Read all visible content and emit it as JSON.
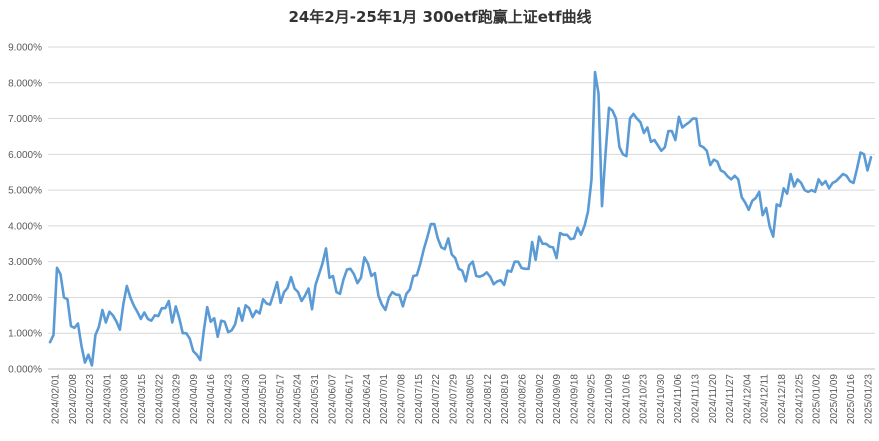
{
  "chart_data": {
    "type": "line",
    "title": "24年2月-25年1月 300etf跑赢上证etf曲线",
    "xlabel": "",
    "ylabel": "",
    "ylim": [
      0,
      0.09
    ],
    "yticks": [
      "0.000%",
      "1.000%",
      "2.000%",
      "3.000%",
      "4.000%",
      "5.000%",
      "6.000%",
      "7.000%",
      "8.000%",
      "9.000%"
    ],
    "xticks": [
      "2024/02/01",
      "2024/02/08",
      "2024/02/23",
      "2024/03/01",
      "2024/03/08",
      "2024/03/15",
      "2024/03/22",
      "2024/03/29",
      "2024/04/09",
      "2024/04/16",
      "2024/04/23",
      "2024/04/30",
      "2024/05/10",
      "2024/05/17",
      "2024/05/24",
      "2024/05/31",
      "2024/06/07",
      "2024/06/17",
      "2024/06/24",
      "2024/07/01",
      "2024/07/08",
      "2024/07/15",
      "2024/07/22",
      "2024/07/29",
      "2024/08/05",
      "2024/08/12",
      "2024/08/19",
      "2024/08/26",
      "2024/09/02",
      "2024/09/09",
      "2024/09/18",
      "2024/09/25",
      "2024/10/09",
      "2024/10/16",
      "2024/10/23",
      "2024/10/30",
      "2024/11/06",
      "2024/11/13",
      "2024/11/20",
      "2024/11/27",
      "2024/12/04",
      "2024/12/11",
      "2024/12/18",
      "2024/12/25",
      "2025/01/02",
      "2025/01/09",
      "2025/01/16",
      "2025/01/23"
    ],
    "grid": true,
    "legend": "none",
    "line_color": "#5b9bd5",
    "series": [
      {
        "values": [
          0.0075,
          0.0095,
          0.0283,
          0.0265,
          0.02,
          0.0195,
          0.012,
          0.0115,
          0.0127,
          0.0065,
          0.0018,
          0.004,
          0.001,
          0.0095,
          0.0118,
          0.0165,
          0.013,
          0.016,
          0.015,
          0.0133,
          0.011,
          0.0182,
          0.0232,
          0.02,
          0.0177,
          0.016,
          0.014,
          0.0158,
          0.014,
          0.0135,
          0.015,
          0.0148,
          0.017,
          0.017,
          0.019,
          0.013,
          0.0175,
          0.0142,
          0.01,
          0.01,
          0.0085,
          0.005,
          0.004,
          0.0025,
          0.0105,
          0.0173,
          0.0132,
          0.0142,
          0.009,
          0.0135,
          0.0132,
          0.0103,
          0.0108,
          0.0125,
          0.017,
          0.0135,
          0.0178,
          0.017,
          0.0145,
          0.0163,
          0.0155,
          0.0195,
          0.0183,
          0.018,
          0.021,
          0.0243,
          0.0185,
          0.0215,
          0.0227,
          0.0257,
          0.0225,
          0.0215,
          0.019,
          0.0205,
          0.0225,
          0.0167,
          0.0235,
          0.0265,
          0.0295,
          0.0337,
          0.0255,
          0.026,
          0.0215,
          0.021,
          0.025,
          0.0278,
          0.028,
          0.0265,
          0.024,
          0.0255,
          0.0312,
          0.0295,
          0.026,
          0.0268,
          0.0205,
          0.018,
          0.0165,
          0.02,
          0.0215,
          0.0208,
          0.0207,
          0.0175,
          0.021,
          0.0222,
          0.026,
          0.0262,
          0.0295,
          0.0335,
          0.0368,
          0.0405,
          0.0405,
          0.0365,
          0.034,
          0.0335,
          0.0365,
          0.032,
          0.031,
          0.028,
          0.0275,
          0.0245,
          0.029,
          0.03,
          0.026,
          0.0258,
          0.0262,
          0.027,
          0.0258,
          0.0237,
          0.0245,
          0.0248,
          0.0235,
          0.0275,
          0.0272,
          0.03,
          0.03,
          0.0282,
          0.028,
          0.028,
          0.0355,
          0.0305,
          0.037,
          0.035,
          0.035,
          0.0342,
          0.034,
          0.031,
          0.038,
          0.0375,
          0.0375,
          0.0363,
          0.0365,
          0.0395,
          0.0375,
          0.04,
          0.044,
          0.053,
          0.083,
          0.077,
          0.0455,
          0.06,
          0.073,
          0.0722,
          0.07,
          0.062,
          0.06,
          0.0595,
          0.07,
          0.0713,
          0.07,
          0.069,
          0.066,
          0.0675,
          0.0635,
          0.064,
          0.0625,
          0.061,
          0.062,
          0.0665,
          0.0665,
          0.064,
          0.0705,
          0.0675,
          0.0683,
          0.069,
          0.07,
          0.07,
          0.0625,
          0.062,
          0.061,
          0.057,
          0.0585,
          0.058,
          0.0555,
          0.055,
          0.0538,
          0.053,
          0.054,
          0.053,
          0.048,
          0.0465,
          0.0445,
          0.047,
          0.0478,
          0.0495,
          0.043,
          0.045,
          0.0398,
          0.037,
          0.046,
          0.0455,
          0.0505,
          0.049,
          0.0545,
          0.051,
          0.053,
          0.052,
          0.05,
          0.0495,
          0.05,
          0.0495,
          0.053,
          0.0515,
          0.0525,
          0.0505,
          0.052,
          0.0525,
          0.0535,
          0.0545,
          0.054,
          0.0525,
          0.052,
          0.056,
          0.0605,
          0.06,
          0.0555,
          0.0592
        ]
      }
    ]
  }
}
